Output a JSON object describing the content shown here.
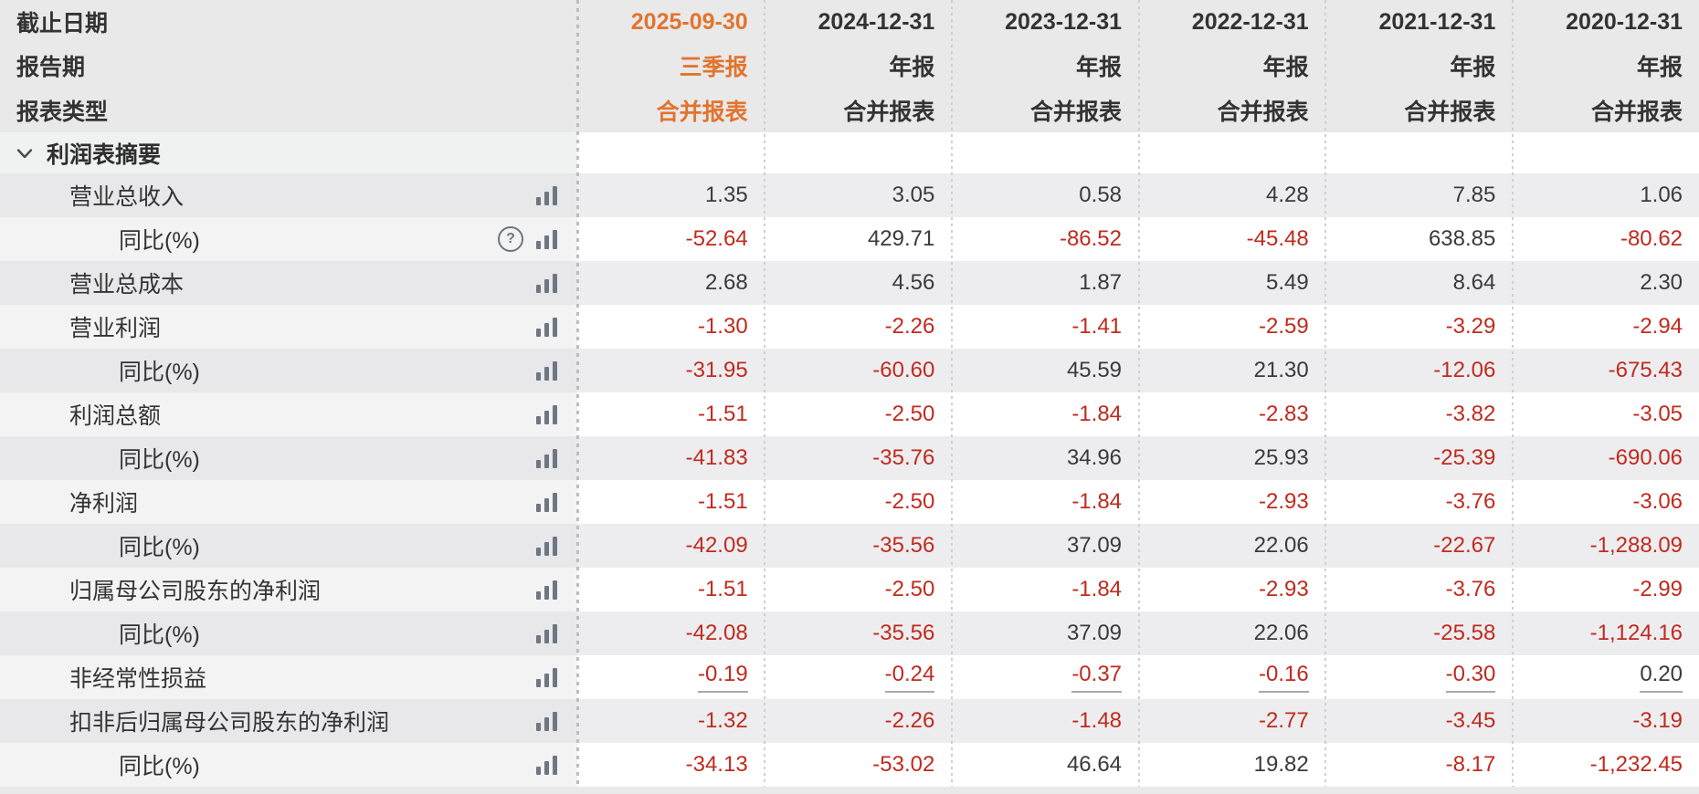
{
  "header": {
    "row_labels": [
      "截止日期",
      "报告期",
      "报表类型"
    ],
    "columns": [
      {
        "date": "2025-09-30",
        "period": "三季报",
        "report_type": "合并报表",
        "highlight": true
      },
      {
        "date": "2024-12-31",
        "period": "年报",
        "report_type": "合并报表",
        "highlight": false
      },
      {
        "date": "2023-12-31",
        "period": "年报",
        "report_type": "合并报表",
        "highlight": false
      },
      {
        "date": "2022-12-31",
        "period": "年报",
        "report_type": "合并报表",
        "highlight": false
      },
      {
        "date": "2021-12-31",
        "period": "年报",
        "report_type": "合并报表",
        "highlight": false
      },
      {
        "date": "2020-12-31",
        "period": "年报",
        "report_type": "合并报表",
        "highlight": false
      }
    ]
  },
  "section": {
    "title": "利润表摘要",
    "chevron_icon": "chevron-down-icon",
    "expanded": true
  },
  "table": {
    "rows": [
      {
        "label": "营业总收入",
        "indent": 0,
        "help": false,
        "underline": false,
        "values": [
          "1.35",
          "3.05",
          "0.58",
          "4.28",
          "7.85",
          "1.06"
        ]
      },
      {
        "label": "同比(%)",
        "indent": 1,
        "help": true,
        "underline": false,
        "values": [
          "-52.64",
          "429.71",
          "-86.52",
          "-45.48",
          "638.85",
          "-80.62"
        ]
      },
      {
        "label": "营业总成本",
        "indent": 0,
        "help": false,
        "underline": false,
        "values": [
          "2.68",
          "4.56",
          "1.87",
          "5.49",
          "8.64",
          "2.30"
        ]
      },
      {
        "label": "营业利润",
        "indent": 0,
        "help": false,
        "underline": false,
        "values": [
          "-1.30",
          "-2.26",
          "-1.41",
          "-2.59",
          "-3.29",
          "-2.94"
        ]
      },
      {
        "label": "同比(%)",
        "indent": 1,
        "help": false,
        "underline": false,
        "values": [
          "-31.95",
          "-60.60",
          "45.59",
          "21.30",
          "-12.06",
          "-675.43"
        ]
      },
      {
        "label": "利润总额",
        "indent": 0,
        "help": false,
        "underline": false,
        "values": [
          "-1.51",
          "-2.50",
          "-1.84",
          "-2.83",
          "-3.82",
          "-3.05"
        ]
      },
      {
        "label": "同比(%)",
        "indent": 1,
        "help": false,
        "underline": false,
        "values": [
          "-41.83",
          "-35.76",
          "34.96",
          "25.93",
          "-25.39",
          "-690.06"
        ]
      },
      {
        "label": "净利润",
        "indent": 0,
        "help": false,
        "underline": false,
        "values": [
          "-1.51",
          "-2.50",
          "-1.84",
          "-2.93",
          "-3.76",
          "-3.06"
        ]
      },
      {
        "label": "同比(%)",
        "indent": 1,
        "help": false,
        "underline": false,
        "values": [
          "-42.09",
          "-35.56",
          "37.09",
          "22.06",
          "-22.67",
          "-1,288.09"
        ]
      },
      {
        "label": "归属母公司股东的净利润",
        "indent": 0,
        "help": false,
        "underline": false,
        "values": [
          "-1.51",
          "-2.50",
          "-1.84",
          "-2.93",
          "-3.76",
          "-2.99"
        ]
      },
      {
        "label": "同比(%)",
        "indent": 1,
        "help": false,
        "underline": false,
        "values": [
          "-42.08",
          "-35.56",
          "37.09",
          "22.06",
          "-25.58",
          "-1,124.16"
        ]
      },
      {
        "label": "非经常性损益",
        "indent": 0,
        "help": false,
        "underline": true,
        "values": [
          "-0.19",
          "-0.24",
          "-0.37",
          "-0.16",
          "-0.30",
          "0.20"
        ]
      },
      {
        "label": "扣非后归属母公司股东的净利润",
        "indent": 0,
        "help": false,
        "underline": false,
        "values": [
          "-1.32",
          "-2.26",
          "-1.48",
          "-2.77",
          "-3.45",
          "-3.19"
        ]
      },
      {
        "label": "同比(%)",
        "indent": 1,
        "help": false,
        "underline": false,
        "values": [
          "-34.13",
          "-53.02",
          "46.64",
          "19.82",
          "-8.17",
          "-1,232.45"
        ]
      }
    ]
  },
  "icons": {
    "bar_chart": "bar-chart-icon",
    "help": "help-circle-icon",
    "chevron": "chevron-down-icon"
  },
  "colors": {
    "highlight_orange": "#e2742e",
    "negative_red": "#c02a1e",
    "text_dark": "#3a3a3a",
    "header_bg": "#e9e9ea",
    "shaded_cell_bg": "#ededef",
    "shaded_label_bg": "#e8e8ea",
    "plain_label_bg": "#f3f3f4"
  }
}
